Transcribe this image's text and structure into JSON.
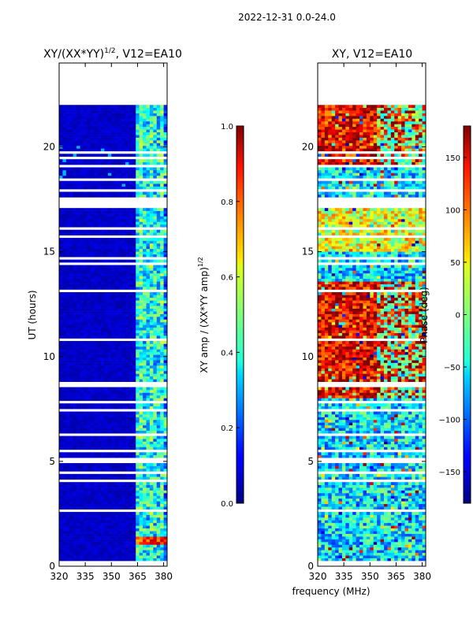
{
  "figure_title": "2022-12-31 0.0-24.0",
  "shared_xlabel": "frequency (MHz)",
  "chart_data": [
    {
      "type": "heatmap",
      "title_text": "XY/(XX*YY)",
      "title_sup": "1/2",
      "title_rest": ", V12=EA10",
      "ylabel": "UT (hours)",
      "xlim": [
        320,
        382
      ],
      "ylim": [
        0,
        24
      ],
      "xticks": [
        320,
        335,
        350,
        365,
        380
      ],
      "yticks": [
        0,
        5,
        10,
        15,
        20
      ],
      "data_ut_range": [
        0.0,
        22.0
      ],
      "colorscale": "jet",
      "description": "low normalized amplitude (~0.05) below 363 MHz, mixed 0.2-0.6 above with RFI stripes",
      "colorbar": {
        "label_text": "XY amp / (XX*YY amp)",
        "label_sup": "1/2",
        "range": [
          0.0,
          1.0
        ],
        "ticks": [
          0.0,
          0.2,
          0.4,
          0.6,
          0.8,
          1.0
        ],
        "tick_labels": [
          "0.0",
          "0.2",
          "0.4",
          "0.6",
          "0.8",
          "1.0"
        ]
      }
    },
    {
      "type": "heatmap",
      "title_text": "XY, V12=EA10",
      "ylabel": "",
      "xlim": [
        320,
        382
      ],
      "ylim": [
        0,
        24
      ],
      "xticks": [
        320,
        335,
        350,
        365,
        380
      ],
      "yticks": [
        0,
        5,
        10,
        15,
        20
      ],
      "data_ut_range": [
        0.0,
        22.0
      ],
      "colorscale": "jet",
      "description": "phase ~150 deg (red) between UT 8-14 and 19-22, mixed cyan/blue elsewhere",
      "colorbar": {
        "label_text": "Phase (deg)",
        "range": [
          -180,
          180
        ],
        "ticks": [
          -150,
          -100,
          -50,
          0,
          50,
          100,
          150
        ],
        "tick_labels": [
          "−150",
          "−100",
          "−50",
          "0",
          "50",
          "100",
          "150"
        ]
      }
    }
  ]
}
